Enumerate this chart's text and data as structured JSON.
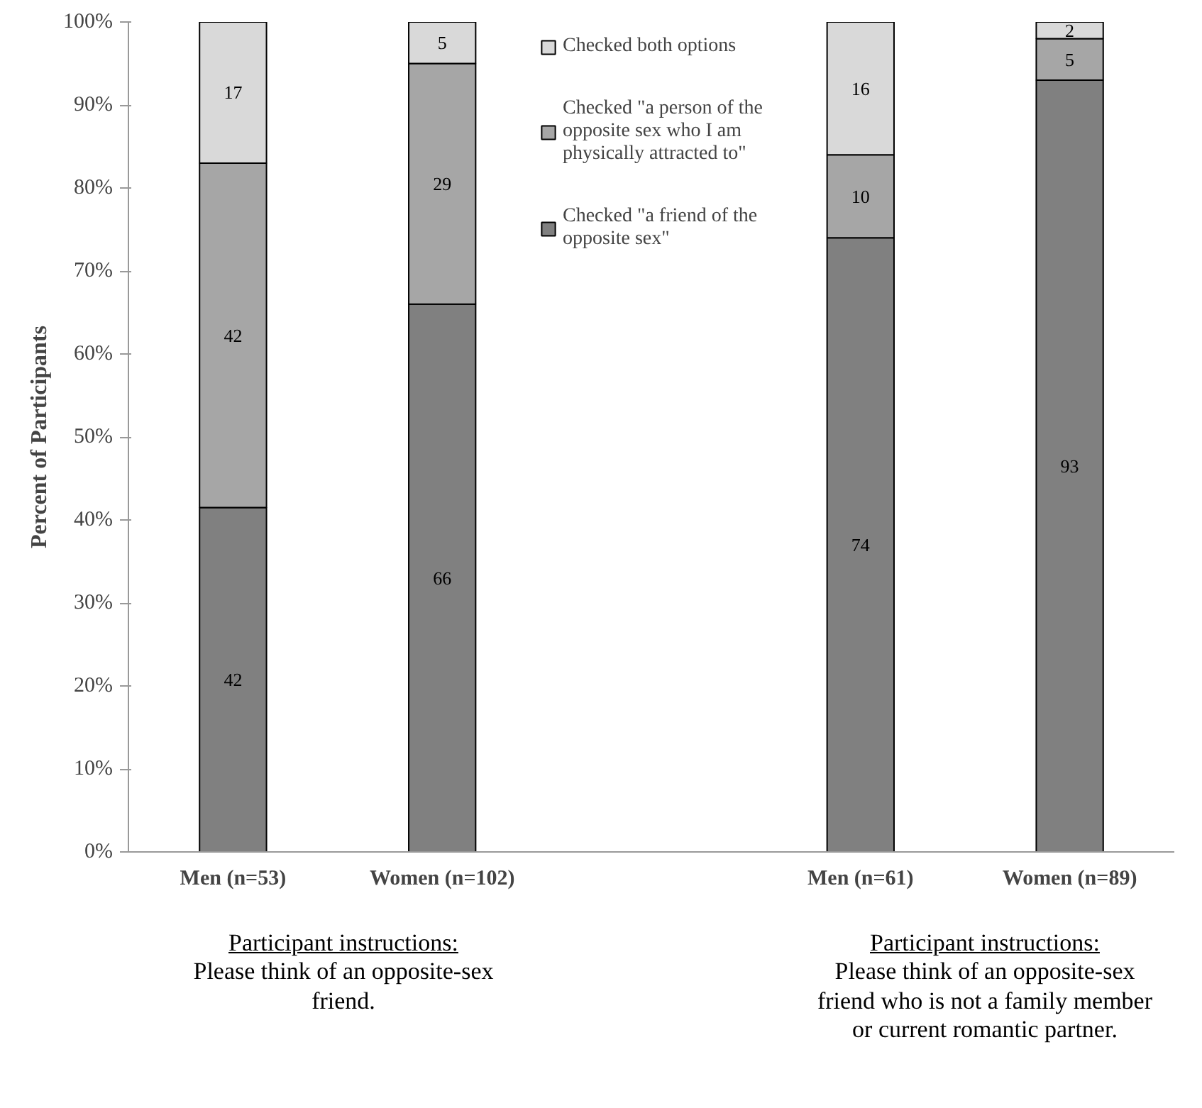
{
  "chart_data": {
    "type": "bar",
    "stacked": true,
    "ylabel": "Percent of Participants",
    "categories": [
      "Men (n=53)",
      "Women (n=102)",
      null,
      "Men (n=61)",
      "Women (n=89)"
    ],
    "series": [
      {
        "name": "Checked \"a friend of the opposite sex\"",
        "color": "#808080",
        "values": [
          41.5,
          66,
          null,
          74,
          93
        ],
        "value_labels": [
          "42",
          "66",
          null,
          "74",
          "93"
        ]
      },
      {
        "name": "Checked \"a person of the opposite sex who I am physically attracted to\"",
        "color": "#a6a6a6",
        "values": [
          41.5,
          29,
          null,
          10,
          5
        ],
        "value_labels": [
          "42",
          "29",
          null,
          "10",
          "5"
        ]
      },
      {
        "name": "Checked both options",
        "color": "#d9d9d9",
        "values": [
          17,
          5,
          null,
          16,
          2
        ],
        "value_labels": [
          "17",
          "5",
          null,
          "16",
          "2"
        ]
      }
    ],
    "ylim": [
      0,
      100
    ],
    "yticks": [
      {
        "value": 0,
        "label": "0%"
      },
      {
        "value": 10,
        "label": "10%"
      },
      {
        "value": 20,
        "label": "20%"
      },
      {
        "value": 30,
        "label": "30%"
      },
      {
        "value": 40,
        "label": "40%"
      },
      {
        "value": 50,
        "label": "50%"
      },
      {
        "value": 60,
        "label": "60%"
      },
      {
        "value": 70,
        "label": "70%"
      },
      {
        "value": 80,
        "label": "80%"
      },
      {
        "value": 90,
        "label": "90%"
      },
      {
        "value": 100,
        "label": "100%"
      }
    ],
    "grid": false,
    "legend": "top",
    "annotations": [
      "Participant instructions:\nPlease think of an opposite-sex\nfriend.",
      "Participant instructions:\nPlease think of an opposite-sex\nfriend who is not a family member\nor current romantic partner."
    ]
  }
}
